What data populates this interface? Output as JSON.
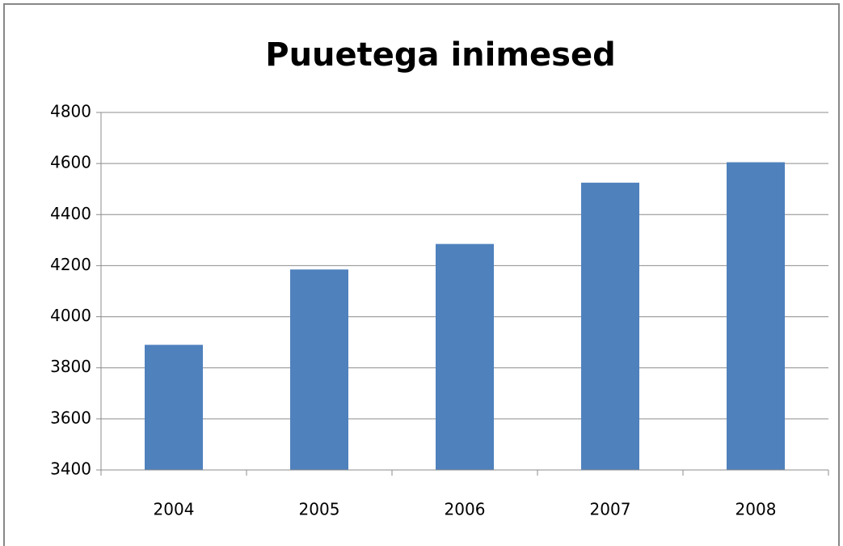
{
  "chart_data": {
    "type": "bar",
    "title": "Puuetega inimesed",
    "categories": [
      "2004",
      "2005",
      "2006",
      "2007",
      "2008"
    ],
    "values": [
      3890,
      4185,
      4285,
      4525,
      4605
    ],
    "color": "#4f81bd",
    "ylim": [
      3400,
      4800
    ],
    "yticks": [
      3400,
      3600,
      3800,
      4000,
      4200,
      4400,
      4600,
      4800
    ],
    "grid": true
  }
}
